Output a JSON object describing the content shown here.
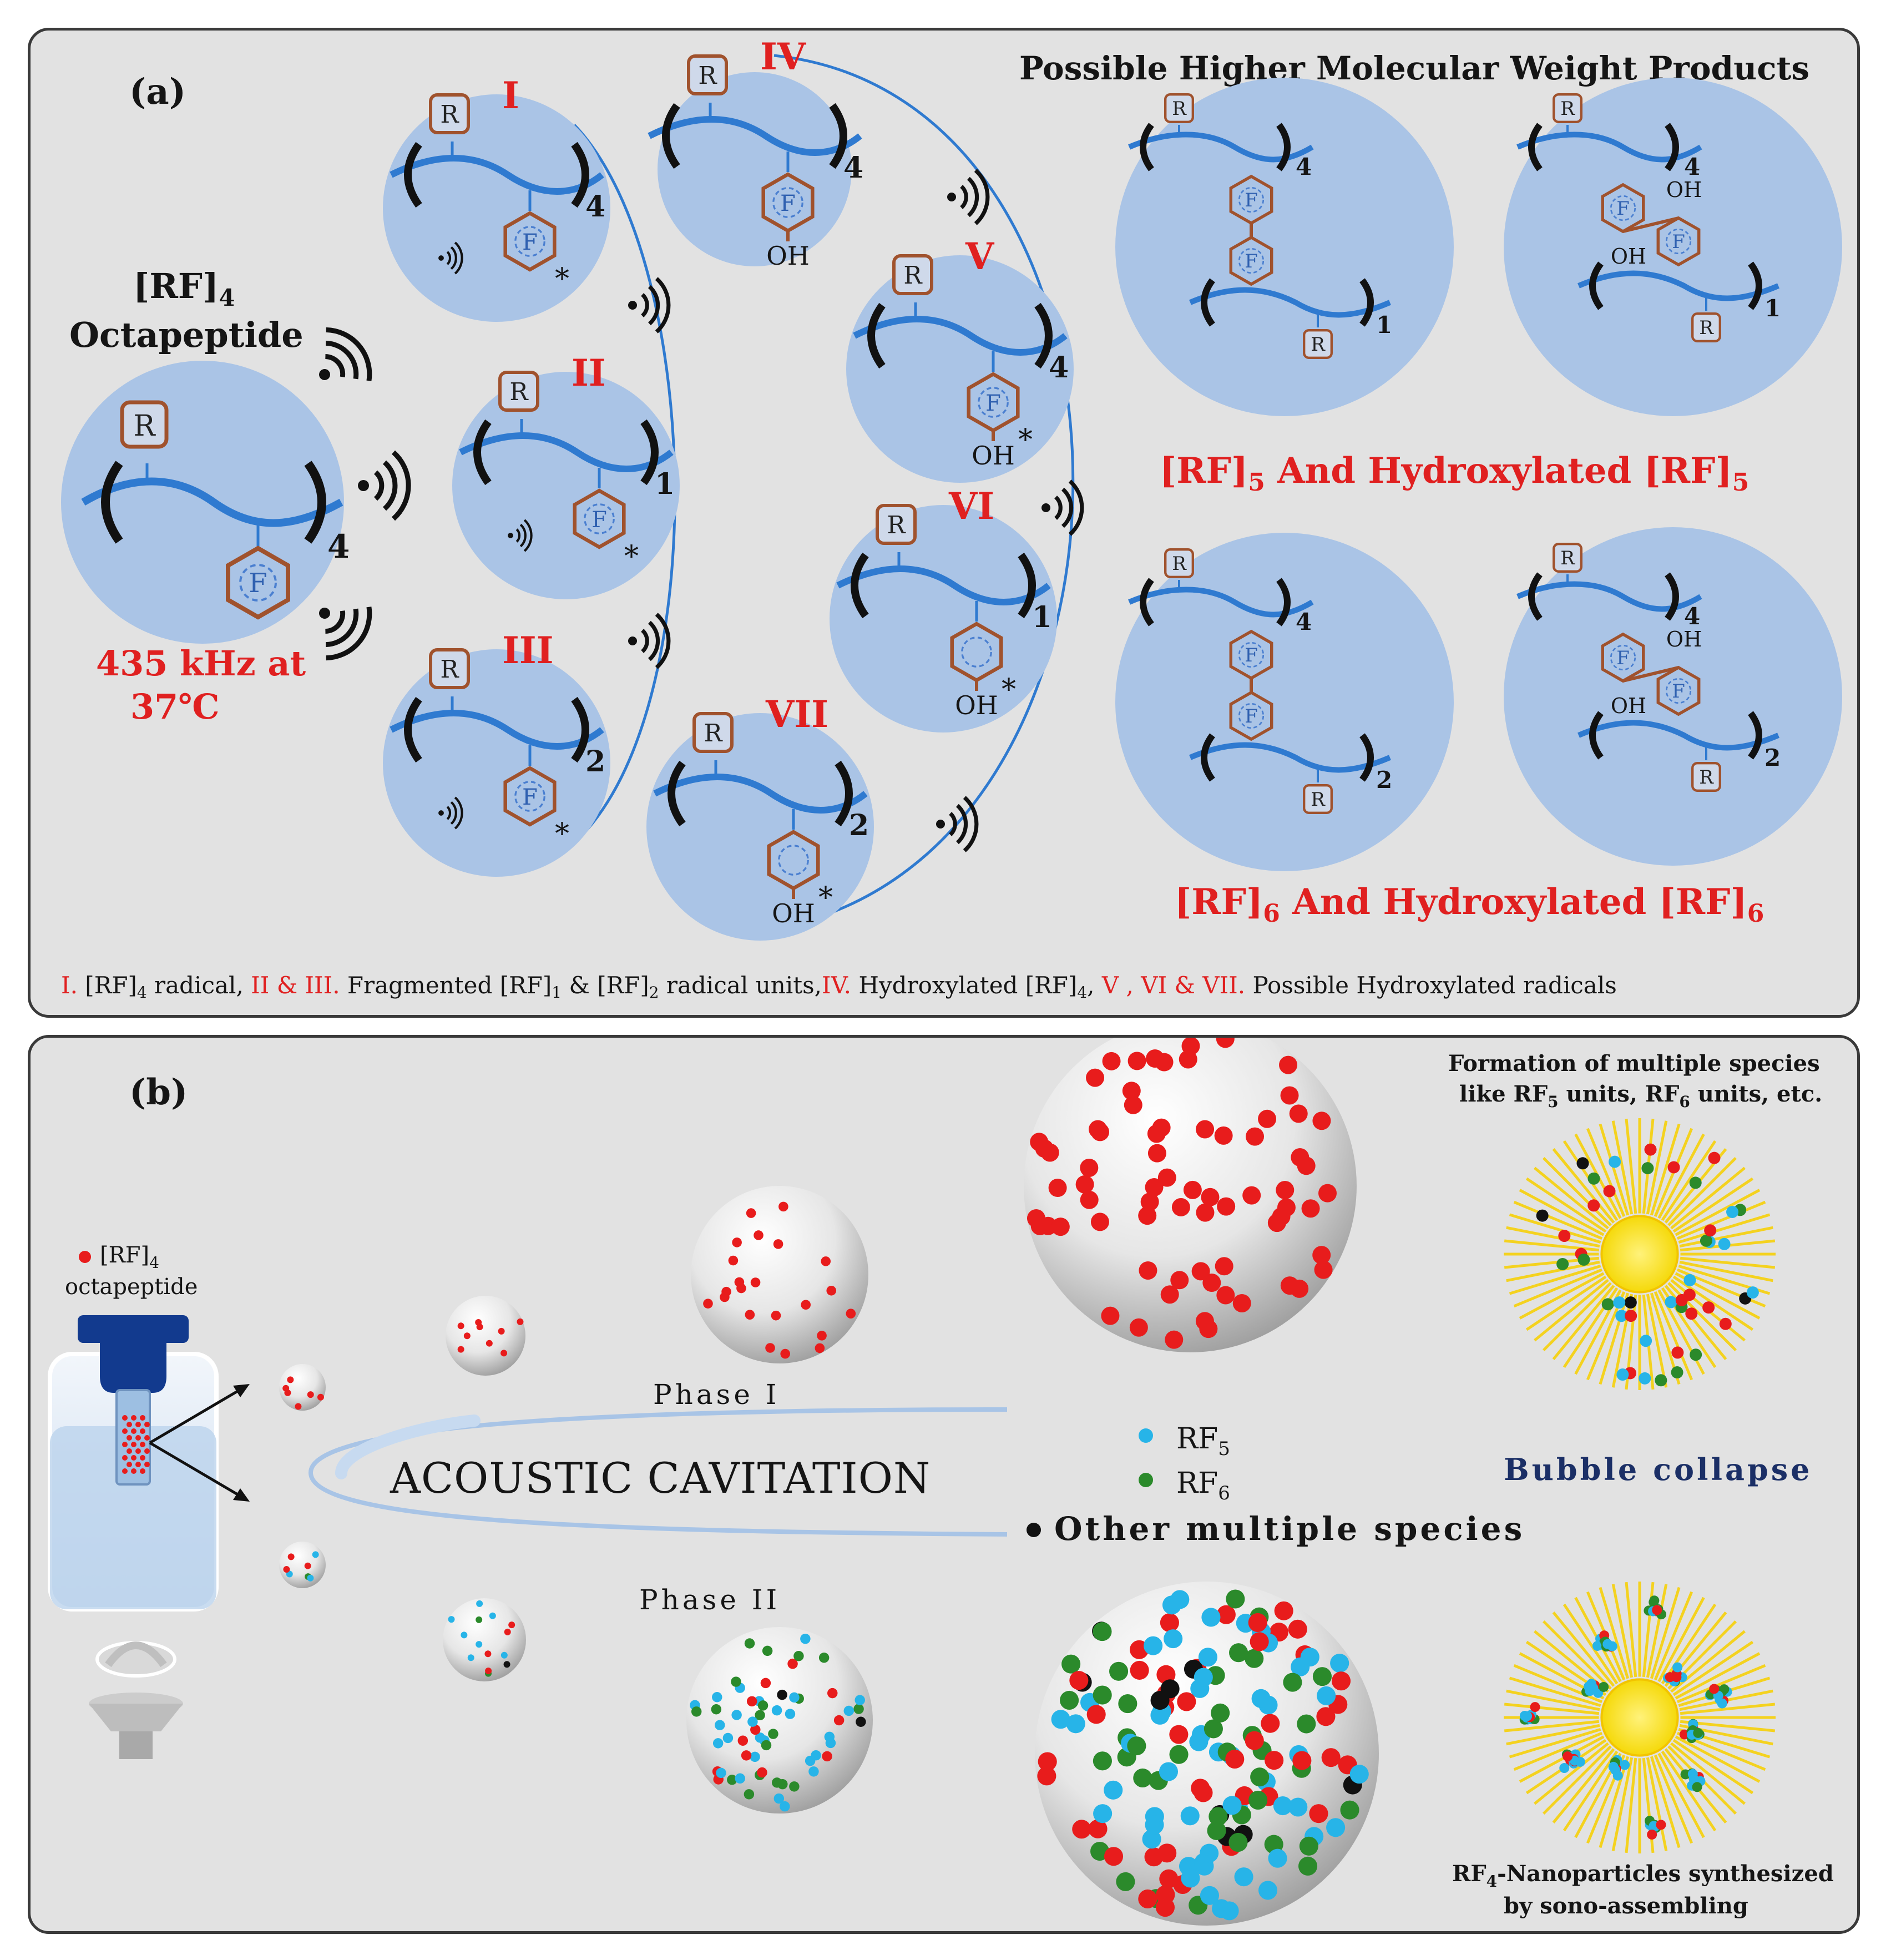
{
  "panel_a": {
    "label": "(a)",
    "title": "Possible Higher Molecular Weight Products",
    "start_label_1": "[RF]",
    "start_label_1_sub": "4",
    "start_label_2": "Octapeptide",
    "condition_1": "435 kHz at",
    "condition_2": "37℃",
    "residue_r": "R",
    "residue_f": "F",
    "radical_mark": "*",
    "hydroxyl": "OH",
    "species": [
      {
        "numeral": "I",
        "repeat": "4"
      },
      {
        "numeral": "II",
        "repeat": "1"
      },
      {
        "numeral": "III",
        "repeat": "2"
      },
      {
        "numeral": "IV",
        "repeat": "4"
      },
      {
        "numeral": "V",
        "repeat": "4"
      },
      {
        "numeral": "VI",
        "repeat": "1"
      },
      {
        "numeral": "VII",
        "repeat": "2"
      }
    ],
    "start_repeat": "4",
    "product_repeats": {
      "outer": "4",
      "rf5": "1",
      "rf6": "2"
    },
    "rf5_caption": {
      "a": "[RF]",
      "a_sub": "5",
      "b": " And Hydroxylated [RF]",
      "b_sub": "5"
    },
    "rf6_caption": {
      "a": "[RF]",
      "a_sub": "6",
      "b": " And Hydroxylated [RF]",
      "b_sub": "6"
    },
    "footer": [
      {
        "text": "I.",
        "color": "red"
      },
      {
        "text": " [RF]",
        "color": "black"
      },
      {
        "text": "4",
        "color": "black",
        "sub": true
      },
      {
        "text": " radical,",
        "color": "black"
      },
      {
        "text": " II & III.",
        "color": "red"
      },
      {
        "text": " Fragmented [RF]",
        "color": "black"
      },
      {
        "text": "1",
        "color": "black",
        "sub": true
      },
      {
        "text": " & [RF]",
        "color": "black"
      },
      {
        "text": "2",
        "color": "black",
        "sub": true
      },
      {
        "text": " radical units,",
        "color": "black"
      },
      {
        "text": "IV.",
        "color": "red"
      },
      {
        "text": " Hydroxylated [RF]",
        "color": "black"
      },
      {
        "text": "4",
        "color": "black",
        "sub": true
      },
      {
        "text": ",",
        "color": "black"
      },
      {
        "text": " V , VI & VII.",
        "color": "red"
      },
      {
        "text": " Possible Hydroxylated radicals",
        "color": "black"
      }
    ]
  },
  "panel_b": {
    "label": "(b)",
    "legend_rf4": "[RF]",
    "legend_rf4_sub": "4",
    "legend_rf4_2": "octapeptide",
    "phase1": "Phase I",
    "phase2": "Phase II",
    "cavitation": "ACOUSTIC CAVITATION",
    "legend_rf5": "RF",
    "legend_rf5_sub": "5",
    "legend_rf6": "RF",
    "legend_rf6_sub": "6",
    "legend_other": "Other multiple species",
    "formation_1": "Formation of multiple  species",
    "formation_2a": "like  RF",
    "formation_2a_sub": "5",
    "formation_2b": " units, RF",
    "formation_2b_sub": "6",
    "formation_2c": " units, etc.",
    "bubble_collapse": "Bubble collapse",
    "nano_1a": "RF",
    "nano_1a_sub": "4",
    "nano_1b": "-Nanoparticles synthesized",
    "nano_2": "by sono-assembling",
    "colors": {
      "rf4": "#e81c1c",
      "rf5": "#27b4e8",
      "rf6": "#2b8a2b",
      "other": "#111111"
    }
  }
}
